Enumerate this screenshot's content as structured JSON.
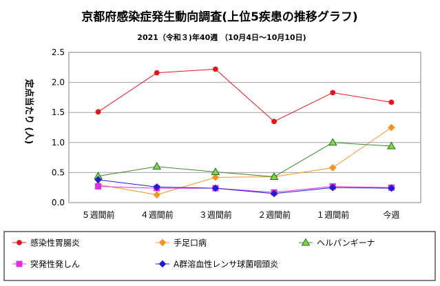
{
  "chart_data": {
    "type": "line",
    "title": "京都府感染症発生動向調査(上位5疾患の推移グラフ)",
    "subtitle": "2021（令和３)年40週 （10月4日～10月10日)",
    "ylabel": "定点当たり (人)",
    "ylim": [
      0,
      2.5
    ],
    "yticks": [
      "0.0",
      "0.5",
      "1.0",
      "1.5",
      "2.0",
      "2.5"
    ],
    "grid": true,
    "legend_position": "bottom",
    "categories": [
      "５週間前",
      "４週間前",
      "３週間前",
      "２週間前",
      "１週間前",
      "今週"
    ],
    "series": [
      {
        "name": "感染性胃腸炎",
        "color": "#e8141c",
        "marker": "circle",
        "values": [
          1.51,
          2.16,
          2.22,
          1.35,
          1.83,
          1.67
        ]
      },
      {
        "name": "手足口病",
        "color": "#f7931e",
        "marker": "diamond",
        "values": [
          0.3,
          0.13,
          0.42,
          0.43,
          0.58,
          1.25
        ]
      },
      {
        "name": "ヘルパンギーナ",
        "color": "#3c8a2e",
        "marker": "triangle",
        "values": [
          0.44,
          0.6,
          0.51,
          0.43,
          1.0,
          0.94
        ]
      },
      {
        "name": "突発性発しん",
        "color": "#e030e0",
        "marker": "square",
        "values": [
          0.27,
          0.24,
          0.24,
          0.17,
          0.27,
          0.25
        ]
      },
      {
        "name": "A群溶血性レンサ球菌咽頭炎",
        "color": "#1d1dd6",
        "marker": "diamond",
        "values": [
          0.38,
          0.26,
          0.24,
          0.15,
          0.25,
          0.24
        ]
      }
    ]
  }
}
